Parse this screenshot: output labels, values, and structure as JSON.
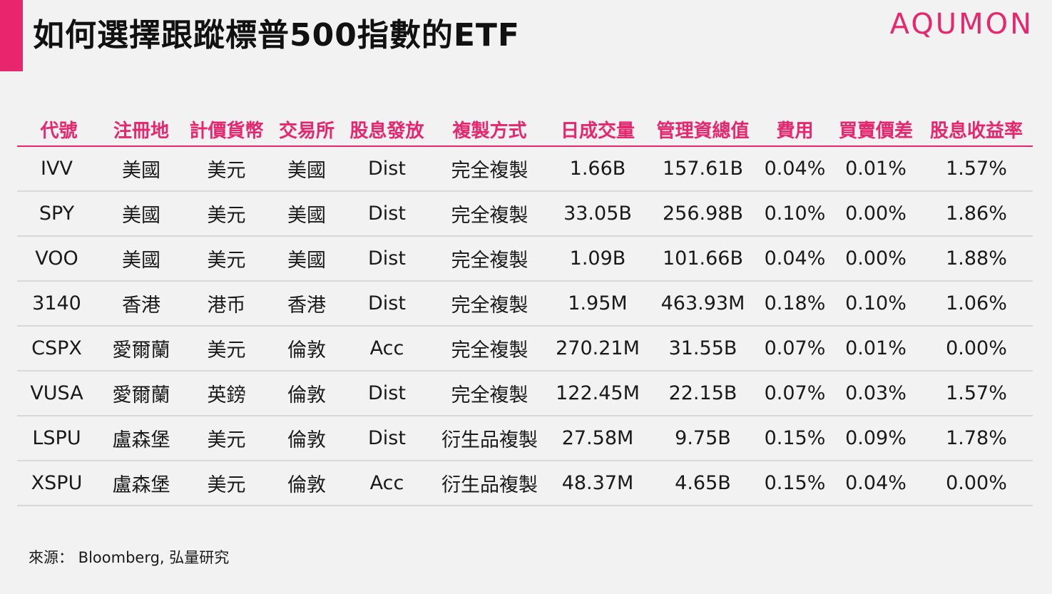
{
  "header": {
    "title": "如何選擇跟蹤標普500指數的ETF",
    "logo_text": "AQUMON",
    "accent_color": "#e8266e"
  },
  "table": {
    "columns": [
      "代號",
      "注冊地",
      "計價貨幣",
      "交易所",
      "股息發放",
      "複製方式",
      "日成交量",
      "管理資總值",
      "費用",
      "買賣價差",
      "股息收益率"
    ],
    "rows": [
      [
        "IVV",
        "美國",
        "美元",
        "美國",
        "Dist",
        "完全複製",
        "1.66B",
        "157.61B",
        "0.04%",
        "0.01%",
        "1.57%"
      ],
      [
        "SPY",
        "美國",
        "美元",
        "美國",
        "Dist",
        "完全複製",
        "33.05B",
        "256.98B",
        "0.10%",
        "0.00%",
        "1.86%"
      ],
      [
        "VOO",
        "美國",
        "美元",
        "美國",
        "Dist",
        "完全複製",
        "1.09B",
        "101.66B",
        "0.04%",
        "0.00%",
        "1.88%"
      ],
      [
        "3140",
        "香港",
        "港币",
        "香港",
        "Dist",
        "完全複製",
        "1.95M",
        "463.93M",
        "0.18%",
        "0.10%",
        "1.06%"
      ],
      [
        "CSPX",
        "愛爾蘭",
        "美元",
        "倫敦",
        "Acc",
        "完全複製",
        "270.21M",
        "31.55B",
        "0.07%",
        "0.01%",
        "0.00%"
      ],
      [
        "VUSA",
        "愛爾蘭",
        "英鎊",
        "倫敦",
        "Dist",
        "完全複製",
        "122.45M",
        "22.15B",
        "0.07%",
        "0.03%",
        "1.57%"
      ],
      [
        "LSPU",
        "盧森堡",
        "美元",
        "倫敦",
        "Dist",
        "衍生品複製",
        "27.58M",
        "9.75B",
        "0.15%",
        "0.09%",
        "1.78%"
      ],
      [
        "XSPU",
        "盧森堡",
        "美元",
        "倫敦",
        "Acc",
        "衍生品複製",
        "48.37M",
        "4.65B",
        "0.15%",
        "0.04%",
        "0.00%"
      ]
    ]
  },
  "footer": {
    "source": "來源： Bloomberg, 弘量研究"
  }
}
